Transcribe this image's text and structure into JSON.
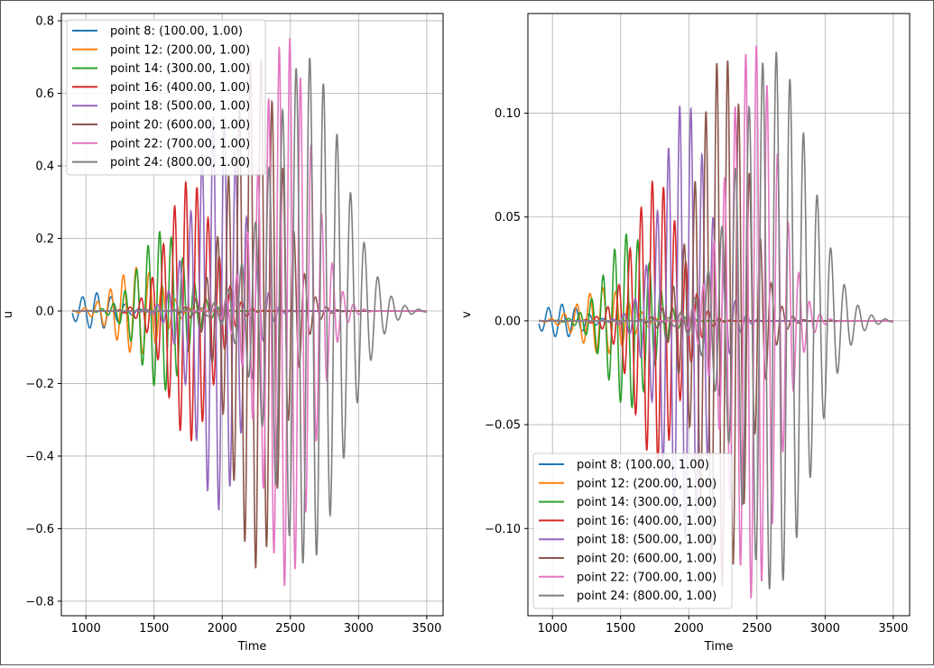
{
  "chart_data": [
    {
      "type": "line",
      "ylabel": "u",
      "xlabel": "Time",
      "xlim": [
        820,
        3620
      ],
      "ylim": [
        -0.84,
        0.82
      ],
      "xticks": [
        1000,
        1500,
        2000,
        2500,
        3000,
        3500
      ],
      "yticks": [
        -0.8,
        -0.6,
        -0.4,
        -0.2,
        0.0,
        0.2,
        0.4,
        0.6,
        0.8
      ],
      "ytick_labels": [
        "−0.8",
        "−0.6",
        "−0.4",
        "−0.2",
        "0.0",
        "0.2",
        "0.4",
        "0.6",
        "0.8"
      ],
      "grid": true,
      "legend_loc": "upper left",
      "series": [
        {
          "name": "point 8: (100.00, 1.00)",
          "color": "#1f77b4",
          "peak_time": 1080,
          "amplitude": 0.05,
          "width": 150,
          "period": 105
        },
        {
          "name": "point 12: (200.00, 1.00)",
          "color": "#ff7f0e",
          "peak_time": 1380,
          "amplitude": 0.12,
          "width": 170,
          "period": 95
        },
        {
          "name": "point 14: (300.00, 1.00)",
          "color": "#2ca02c",
          "peak_time": 1560,
          "amplitude": 0.22,
          "width": 165,
          "period": 85
        },
        {
          "name": "point 16: (400.00, 1.00)",
          "color": "#d62728",
          "peak_time": 1760,
          "amplitude": 0.36,
          "width": 165,
          "period": 82
        },
        {
          "name": "point 18: (500.00, 1.00)",
          "color": "#9467bd",
          "peak_time": 1970,
          "amplitude": 0.55,
          "width": 170,
          "period": 82
        },
        {
          "name": "point 20: (600.00, 1.00)",
          "color": "#8c564b",
          "peak_time": 2250,
          "amplitude": 0.71,
          "width": 180,
          "period": 80
        },
        {
          "name": "point 22: (700.00, 1.00)",
          "color": "#e377c2",
          "peak_time": 2470,
          "amplitude": 0.76,
          "width": 180,
          "period": 78
        },
        {
          "name": "point 24: (800.00, 1.00)",
          "color": "#7f7f7f",
          "peak_time": 2620,
          "amplitude": 0.7,
          "width": 260,
          "period": 100
        }
      ]
    },
    {
      "type": "line",
      "ylabel": "v",
      "xlabel": "Time",
      "xlim": [
        820,
        3620
      ],
      "ylim": [
        -0.142,
        0.148
      ],
      "xticks": [
        1000,
        1500,
        2000,
        2500,
        3000,
        3500
      ],
      "yticks": [
        -0.1,
        -0.05,
        0.0,
        0.05,
        0.1
      ],
      "ytick_labels": [
        "−0.10",
        "−0.05",
        "0.00",
        "0.05",
        "0.10"
      ],
      "grid": true,
      "legend_loc": "lower left",
      "series": [
        {
          "name": "point 8: (100.00, 1.00)",
          "color": "#1f77b4",
          "peak_time": 1070,
          "amplitude": 0.008,
          "width": 150,
          "period": 100
        },
        {
          "name": "point 12: (200.00, 1.00)",
          "color": "#ff7f0e",
          "peak_time": 1380,
          "amplitude": 0.016,
          "width": 170,
          "period": 95
        },
        {
          "name": "point 14: (300.00, 1.00)",
          "color": "#2ca02c",
          "peak_time": 1560,
          "amplitude": 0.042,
          "width": 165,
          "period": 85
        },
        {
          "name": "point 16: (400.00, 1.00)",
          "color": "#d62728",
          "peak_time": 1760,
          "amplitude": 0.068,
          "width": 165,
          "period": 82
        },
        {
          "name": "point 18: (500.00, 1.00)",
          "color": "#9467bd",
          "peak_time": 1970,
          "amplitude": 0.106,
          "width": 170,
          "period": 82
        },
        {
          "name": "point 20: (600.00, 1.00)",
          "color": "#8c564b",
          "peak_time": 2250,
          "amplitude": 0.128,
          "width": 180,
          "period": 80
        },
        {
          "name": "point 22: (700.00, 1.00)",
          "color": "#e377c2",
          "peak_time": 2470,
          "amplitude": 0.134,
          "width": 180,
          "period": 78
        },
        {
          "name": "point 24: (800.00, 1.00)",
          "color": "#7f7f7f",
          "peak_time": 2620,
          "amplitude": 0.13,
          "width": 260,
          "period": 100
        }
      ]
    }
  ]
}
